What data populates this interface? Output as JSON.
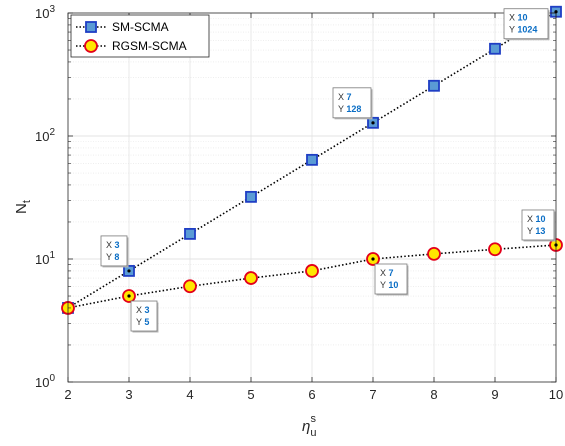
{
  "chart_data": {
    "type": "line",
    "x": [
      2,
      3,
      4,
      5,
      6,
      7,
      8,
      9,
      10
    ],
    "xlim": [
      2,
      10
    ],
    "ylim": [
      1,
      1000
    ],
    "yscale": "log",
    "grid": true,
    "xlabel": {
      "base": "η",
      "sub": "u",
      "sup": "s"
    },
    "ylabel": {
      "base": "N",
      "sub": "t"
    },
    "x_tick_labels": [
      "2",
      "3",
      "4",
      "5",
      "6",
      "7",
      "8",
      "9",
      "10"
    ],
    "y_ticks": [
      {
        "value": 1,
        "base": "10",
        "exp": "0"
      },
      {
        "value": 10,
        "base": "10",
        "exp": "1"
      },
      {
        "value": 100,
        "base": "10",
        "exp": "2"
      },
      {
        "value": 1000,
        "base": "10",
        "exp": "3"
      }
    ],
    "legend_position": "top-left",
    "series": [
      {
        "name": "SM-SCMA",
        "marker": "square",
        "values": [
          4,
          8,
          16,
          32,
          64,
          128,
          256,
          512,
          1024
        ],
        "marker_fill": "#5a9bd5",
        "marker_edge": "#1f3ec4"
      },
      {
        "name": "RGSM-SCMA",
        "marker": "circle",
        "values": [
          4,
          5,
          6,
          7,
          8,
          10,
          11,
          12,
          13
        ],
        "marker_fill": "#ffe600",
        "marker_edge": "#e3001b"
      }
    ],
    "datatips": [
      {
        "series": 0,
        "x": 3,
        "y": 8,
        "x_label": "X",
        "y_label": "Y",
        "x_text": "3",
        "y_text": "8",
        "side": "above-left"
      },
      {
        "series": 0,
        "x": 7,
        "y": 128,
        "x_label": "X",
        "y_label": "Y",
        "x_text": "7",
        "y_text": "128",
        "side": "above-left"
      },
      {
        "series": 0,
        "x": 10,
        "y": 1024,
        "x_label": "X",
        "y_label": "Y",
        "x_text": "10",
        "y_text": "1024",
        "side": "left"
      },
      {
        "series": 1,
        "x": 3,
        "y": 5,
        "x_label": "X",
        "y_label": "Y",
        "x_text": "3",
        "y_text": "5",
        "side": "below-right"
      },
      {
        "series": 1,
        "x": 7,
        "y": 10,
        "x_label": "X",
        "y_label": "Y",
        "x_text": "7",
        "y_text": "10",
        "side": "below-right"
      },
      {
        "series": 1,
        "x": 10,
        "y": 13,
        "x_label": "X",
        "y_label": "Y",
        "x_text": "10",
        "y_text": "13",
        "side": "above-left"
      }
    ],
    "colors": {
      "line": "#000000",
      "grid": "#e3e3e3",
      "axis": "#262626",
      "datatip_value": "#0b6ec5"
    }
  }
}
